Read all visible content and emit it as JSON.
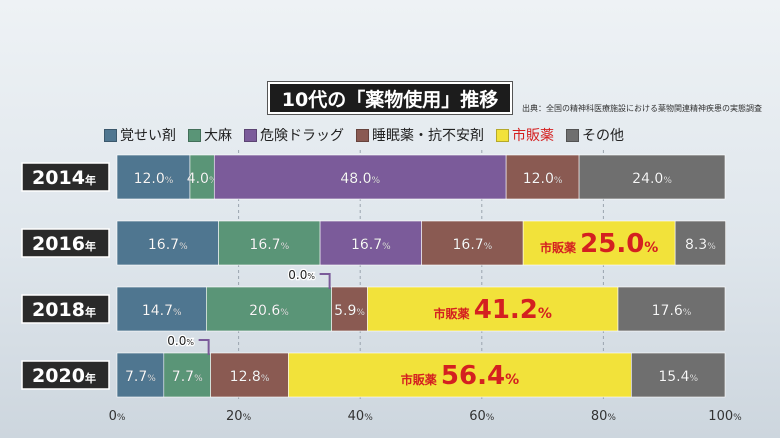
{
  "chart_data": {
    "type": "bar",
    "orientation": "horizontal",
    "stacked": true,
    "title": "10代の「薬物使用」推移",
    "source": "出典：全国の精神科医療施設における薬物関連精神疾患の実態調査",
    "categories": [
      "2014",
      "2016",
      "2018",
      "2020"
    ],
    "category_suffix": "年",
    "xlim": [
      0,
      100
    ],
    "x_ticks": [
      0,
      20,
      40,
      60,
      80,
      100
    ],
    "x_tick_unit": "%",
    "series": [
      {
        "name": "覚せい剤",
        "color": "#4f7690",
        "values": [
          12.0,
          16.7,
          14.7,
          7.7
        ]
      },
      {
        "name": "大麻",
        "color": "#5a9577",
        "values": [
          4.0,
          16.7,
          20.6,
          7.7
        ]
      },
      {
        "name": "危険ドラッグ",
        "color": "#7b5b9a",
        "values": [
          48.0,
          16.7,
          0.0,
          0.0
        ]
      },
      {
        "name": "睡眠薬・抗不安剤",
        "color": "#8a5a52",
        "values": [
          12.0,
          16.7,
          5.9,
          12.8
        ]
      },
      {
        "name": "市販薬",
        "color": "#f2e23a",
        "values": [
          0.0,
          25.0,
          41.2,
          56.4
        ]
      },
      {
        "name": "その他",
        "color": "#6f6f6f",
        "values": [
          24.0,
          8.3,
          17.6,
          15.4
        ]
      }
    ],
    "data_labels": [
      [
        "12.0",
        "4.0",
        "48.0",
        "12.0",
        "",
        "24.0"
      ],
      [
        "16.7",
        "16.7",
        "16.7",
        "16.7",
        "25.0",
        "8.3"
      ],
      [
        "14.7",
        "20.6",
        "0.0",
        "5.9",
        "41.2",
        "17.6"
      ],
      [
        "7.7",
        "7.7",
        "0.0",
        "12.8",
        "56.4",
        "15.4"
      ]
    ],
    "highlight_prefix": "市販薬",
    "label_unit": "%",
    "grid": true,
    "legend_position": "top"
  }
}
